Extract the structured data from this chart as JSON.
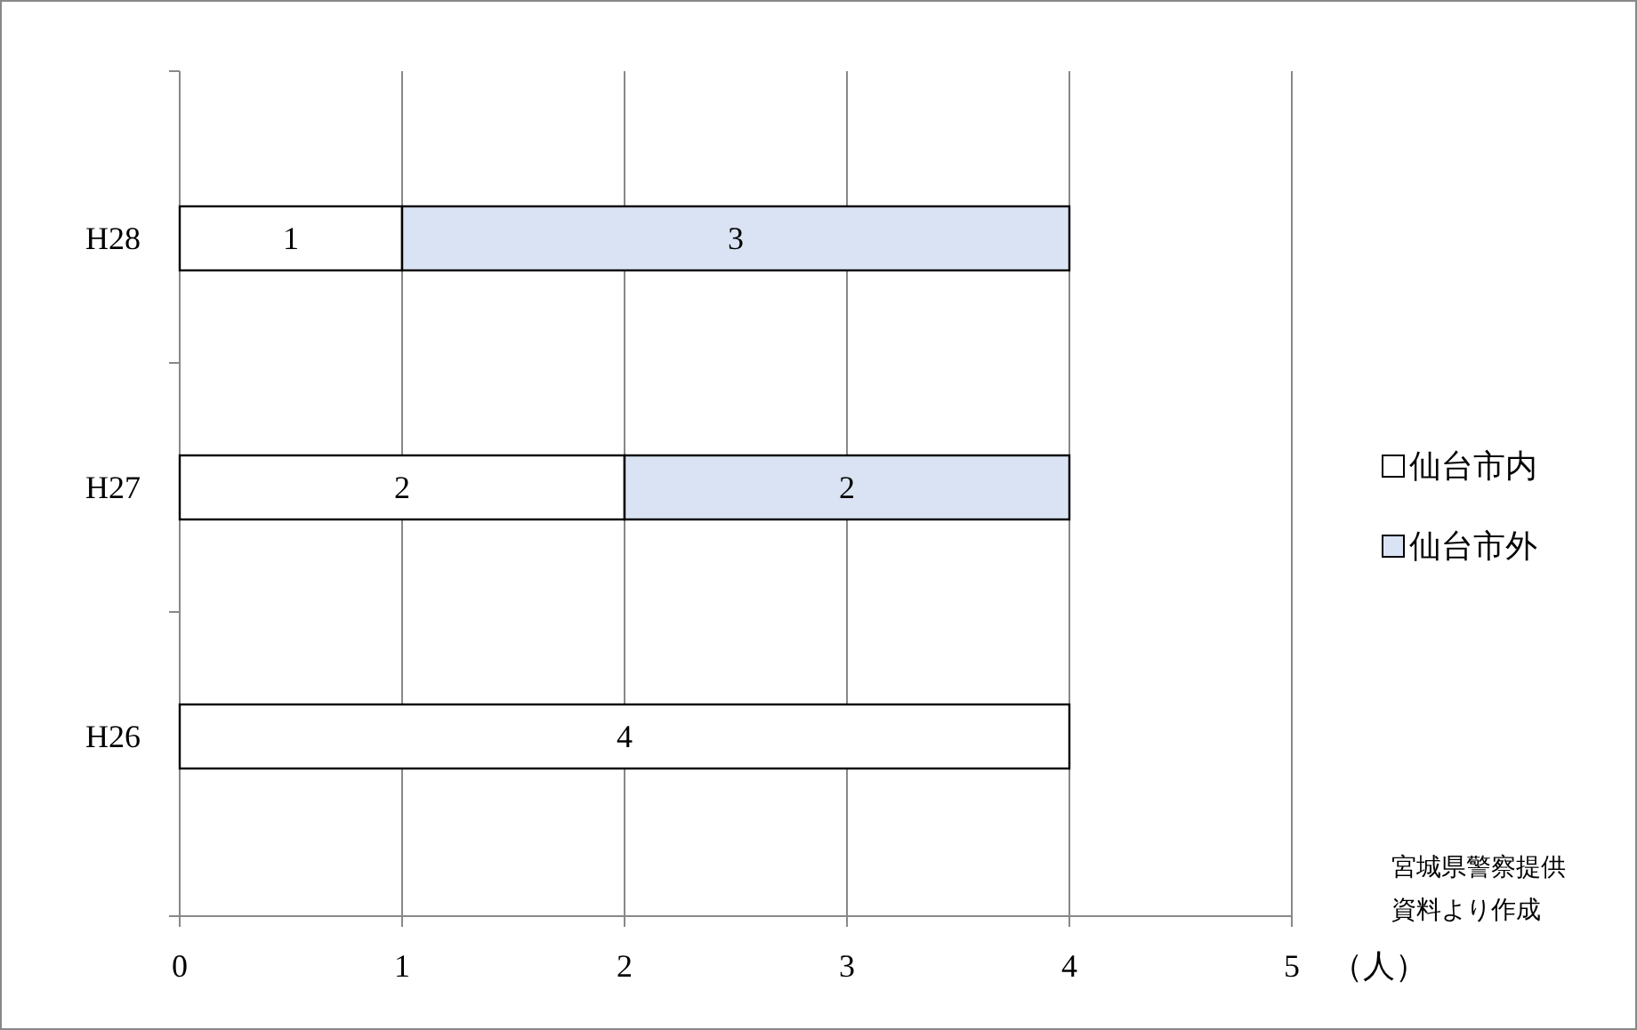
{
  "chart_data": {
    "type": "bar",
    "orientation": "horizontal",
    "stacked": true,
    "categories": [
      "H28",
      "H27",
      "H26"
    ],
    "series": [
      {
        "name": "仙台市内",
        "color": "#ffffff",
        "values": [
          1,
          2,
          4
        ]
      },
      {
        "name": "仙台市外",
        "color": "#dae3f3",
        "values": [
          3,
          2,
          null
        ]
      }
    ],
    "xlim": [
      0,
      5
    ],
    "xticks": [
      0,
      1,
      2,
      3,
      4,
      5
    ],
    "xlabel": "（人）",
    "grid": "x",
    "legend": "right",
    "data_labels": true,
    "annotations": [
      "宮城県警察提供資料より作成"
    ]
  }
}
